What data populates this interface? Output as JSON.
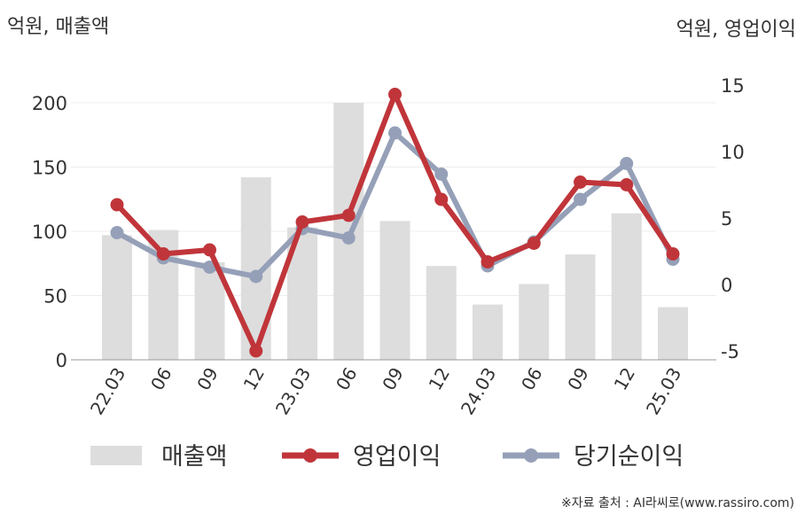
{
  "chart_data": {
    "type": "bar+line",
    "categories": [
      "22.03",
      "06",
      "09",
      "12",
      "23.03",
      "06",
      "09",
      "12",
      "24.03",
      "06",
      "09",
      "12",
      "25.03"
    ],
    "left_axis": {
      "unit_label": "억원, 매출액",
      "ticks": [
        0,
        50,
        100,
        150,
        200
      ],
      "range": [
        0,
        200
      ]
    },
    "right_axis": {
      "unit_label": "억원, 영업이익",
      "ticks": [
        -5,
        0,
        5,
        10,
        15
      ],
      "range": [
        -5,
        15
      ]
    },
    "series": [
      {
        "name": "매출액",
        "kind": "bar",
        "axis": "left",
        "color": "#dddddd",
        "values": [
          97,
          101,
          76,
          142,
          103,
          200,
          108,
          73,
          43,
          59,
          82,
          114,
          41
        ]
      },
      {
        "name": "영업이익",
        "kind": "line",
        "axis": "right",
        "color": "#c0353a",
        "values": [
          6.0,
          2.3,
          2.6,
          -5.0,
          4.7,
          5.2,
          14.3,
          6.4,
          1.7,
          3.1,
          7.7,
          7.5,
          2.3
        ]
      },
      {
        "name": "당기순이익",
        "kind": "line",
        "axis": "right",
        "color": "#95a0b8",
        "values": [
          3.9,
          2.0,
          1.3,
          0.6,
          4.2,
          3.5,
          11.4,
          8.3,
          1.4,
          3.2,
          6.4,
          9.1,
          1.9
        ]
      }
    ],
    "grid": true,
    "legend_position": "bottom"
  },
  "source_note": "※자료 출처 : AI라씨로(www.rassiro.com)"
}
